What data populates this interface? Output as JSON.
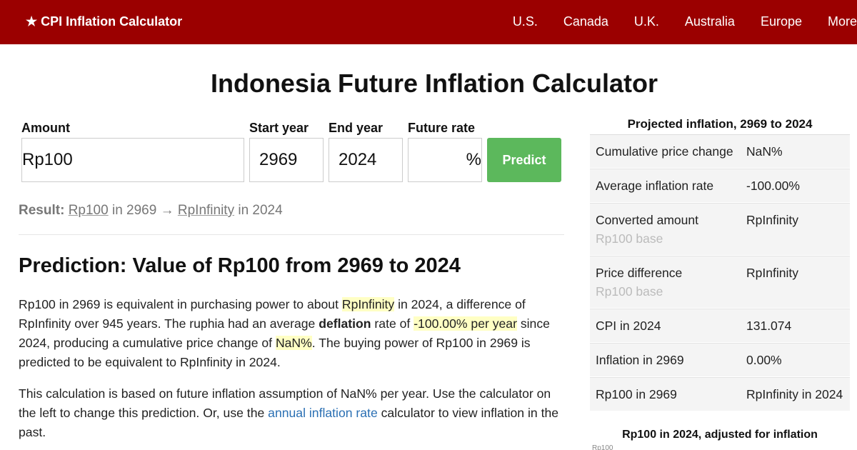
{
  "nav": {
    "brand": "★ CPI Inflation Calculator",
    "links": [
      "U.S.",
      "Canada",
      "U.K.",
      "Australia",
      "Europe",
      "More"
    ]
  },
  "title": "Indonesia Future Inflation Calculator",
  "form": {
    "amount_label": "Amount",
    "amount_value": "Rp100",
    "start_label": "Start year",
    "start_value": "2969",
    "end_label": "End year",
    "end_value": "2024",
    "rate_label": "Future rate",
    "rate_value": "",
    "rate_suffix": "%",
    "predict_label": "Predict"
  },
  "result": {
    "label": "Result:",
    "from_amount": "Rp100",
    "mid": "in 2969",
    "arrow": "→",
    "to_amount": "RpInfinity",
    "end": "in 2024"
  },
  "heading": "Prediction: Value of Rp100 from 2969 to 2024",
  "para1": {
    "t1": "Rp100 in 2969 is equivalent in purchasing power to about ",
    "h1": "RpInfinity",
    "t2": " in 2024, a difference of RpInfinity over 945 years. The ruphia had an average ",
    "b1": "deflation",
    "t3": " rate of ",
    "h2": "-100.00% per year",
    "t4": " since 2024, producing a cumulative price change of ",
    "h3": "NaN%",
    "t5": ". The buying power of Rp100 in 2969 is predicted to be equivalent to RpInfinity in 2024."
  },
  "para2": {
    "t1": "This calculation is based on future inflation assumption of NaN% per year. Use the calculator on the left to change this prediction. Or, use the ",
    "link": "annual inflation rate",
    "t2": " calculator to view inflation in the past."
  },
  "sidebar": {
    "title": "Projected inflation, 2969 to 2024",
    "rows": [
      {
        "label": "Cumulative price change",
        "sub": "",
        "value": "NaN%"
      },
      {
        "label": "Average inflation rate",
        "sub": "",
        "value": "-100.00%"
      },
      {
        "label": "Converted amount",
        "sub": "Rp100 base",
        "value": "RpInfinity"
      },
      {
        "label": "Price difference",
        "sub": "Rp100 base",
        "value": "RpInfinity"
      },
      {
        "label": "CPI in 2024",
        "sub": "",
        "value": "131.074"
      },
      {
        "label": "Inflation in 2969",
        "sub": "",
        "value": "0.00%"
      },
      {
        "label": "Rp100 in 2969",
        "sub": "",
        "value": "RpInfinity in 2024"
      }
    ],
    "footer": "Rp100 in 2024, adjusted for inflation",
    "chart_label": "Rp100"
  }
}
